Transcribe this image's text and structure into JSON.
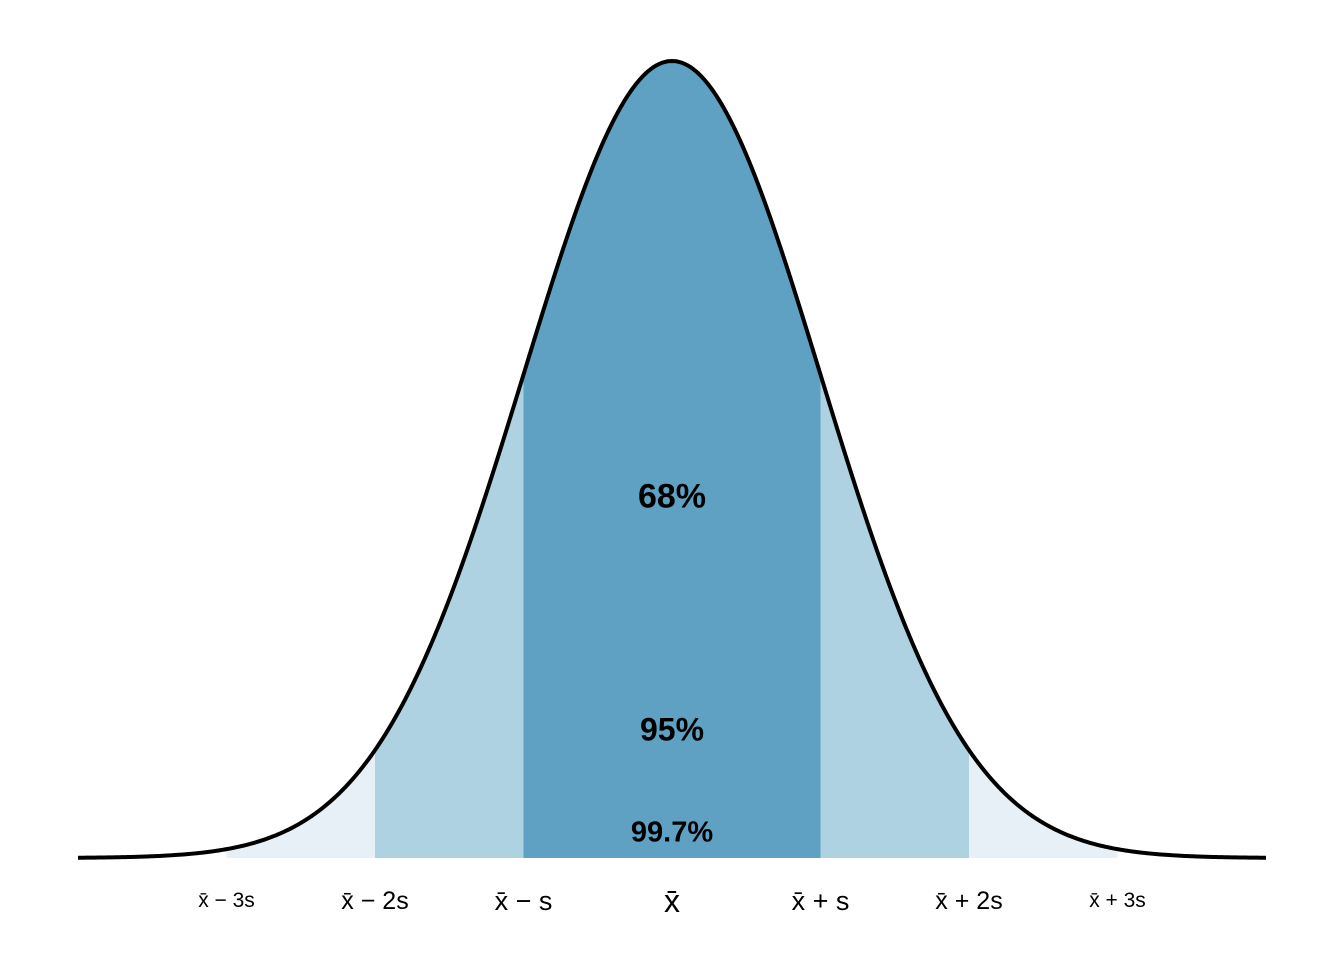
{
  "chart_data": {
    "type": "area",
    "title": "",
    "xlabel": "",
    "ylabel": "",
    "distribution": "normal",
    "mean": 0,
    "sd": 1,
    "xlim": [
      -4,
      4
    ],
    "ylim": [
      0,
      0.4
    ],
    "grid": false,
    "regions": [
      {
        "name": "99.7%",
        "from": -3,
        "to": 3,
        "label": "99.7%",
        "label_y": 0.012,
        "color": "#e8f0f7"
      },
      {
        "name": "95%",
        "from": -2,
        "to": 2,
        "label": "95%",
        "label_y": 0.063,
        "color": "#afd2e2"
      },
      {
        "name": "68%",
        "from": -1,
        "to": 1,
        "label": "68%",
        "label_y": 0.18,
        "color": "#5fa1c2"
      }
    ],
    "ticks": [
      {
        "value": -3,
        "label": "x̄ − 3s"
      },
      {
        "value": -2,
        "label": "x̄ − 2s"
      },
      {
        "value": -1,
        "label": "x̄ − s"
      },
      {
        "value": 0,
        "label": "x̄"
      },
      {
        "value": 1,
        "label": "x̄ + s"
      },
      {
        "value": 2,
        "label": "x̄ + 2s"
      },
      {
        "value": 3,
        "label": "x̄ + 3s"
      }
    ],
    "curve_color": "#000000"
  }
}
